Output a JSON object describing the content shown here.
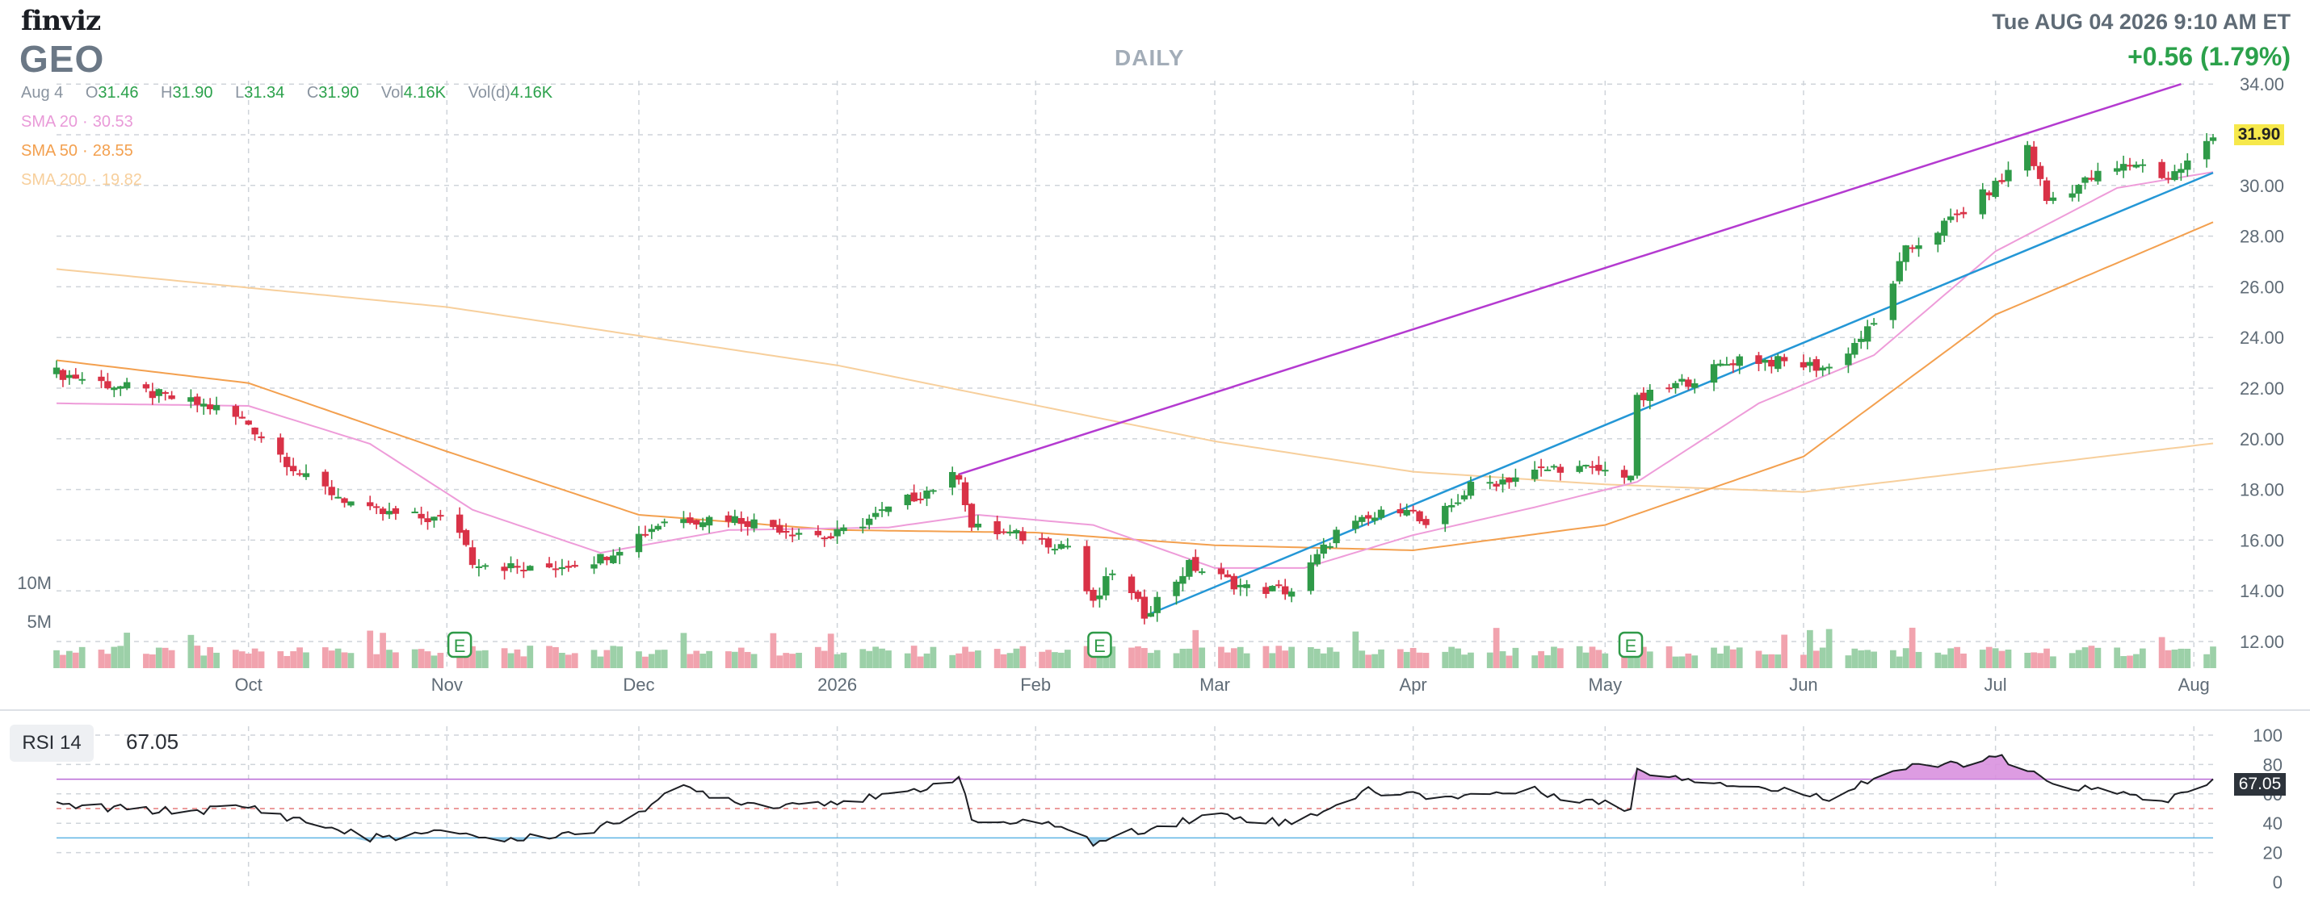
{
  "header": {
    "logo": "finviz",
    "ticker": "GEO",
    "timeframe": "DAILY",
    "datetime": "Tue AUG 04 2026 9:10 AM ET",
    "change": "+0.56 (1.79%)"
  },
  "ohlc": {
    "date": "Aug 4",
    "open_label": "O",
    "open": "31.46",
    "high_label": "H",
    "high": "31.90",
    "low_label": "L",
    "low": "31.34",
    "close_label": "C",
    "close": "31.90",
    "vol_label": "Vol",
    "vol": "4.16K",
    "vold_label": "Vol(d)",
    "vold": "4.16K"
  },
  "sma": [
    {
      "label": "SMA 20",
      "value": "30.53",
      "color": "#e99ad8"
    },
    {
      "label": "SMA 50",
      "value": "28.55",
      "color": "#f3a04f"
    },
    {
      "label": "SMA 200",
      "value": "19.82",
      "color": "#f7cf9c"
    }
  ],
  "last_price_tag": "31.90",
  "rsi": {
    "label": "RSI 14",
    "value": "67.05",
    "tag": "67.05"
  },
  "colors": {
    "up": "#2f9a48",
    "down": "#d93247",
    "grid": "#cfd4da",
    "trendline_upper": "#b43ad0",
    "trendline_lower": "#2497d6",
    "vol_up": "#9cd0a8",
    "vol_down": "#f1a3ae",
    "rsi_fill": "#d991df",
    "rsi_low_fill": "#8fc9e8"
  },
  "chart_data": {
    "type": "candlestick",
    "symbol": "GEO",
    "x_tick_labels": [
      "Oct",
      "Nov",
      "Dec",
      "2026",
      "Feb",
      "Mar",
      "Apr",
      "May",
      "Jun",
      "Jul",
      "Aug"
    ],
    "y_tick_labels": [
      "12.00",
      "14.00",
      "16.00",
      "18.00",
      "20.00",
      "22.00",
      "24.00",
      "26.00",
      "28.00",
      "30.00",
      "34.00"
    ],
    "ylim": [
      11,
      34
    ],
    "volume_labels": [
      "10M",
      "5M"
    ],
    "earnings_marker": "E",
    "anchors": [
      {
        "d": "2025-09-01",
        "p": 22.6
      },
      {
        "d": "2025-09-12",
        "p": 22.0
      },
      {
        "d": "2025-09-26",
        "p": 21.2
      },
      {
        "d": "2025-10-01",
        "p": 20.6
      },
      {
        "d": "2025-10-10",
        "p": 18.4
      },
      {
        "d": "2025-10-20",
        "p": 17.1
      },
      {
        "d": "2025-10-31",
        "p": 16.8
      },
      {
        "d": "2025-11-03",
        "p": 16.4
      },
      {
        "d": "2025-11-05",
        "p": 15.2
      },
      {
        "d": "2025-11-14",
        "p": 14.8
      },
      {
        "d": "2025-11-25",
        "p": 15.3
      },
      {
        "d": "2025-12-05",
        "p": 16.8
      },
      {
        "d": "2025-12-15",
        "p": 16.9
      },
      {
        "d": "2025-12-31",
        "p": 16.1
      },
      {
        "d": "2026-01-09",
        "p": 17.2
      },
      {
        "d": "2026-01-20",
        "p": 18.6
      },
      {
        "d": "2026-01-22",
        "p": 16.5
      },
      {
        "d": "2026-02-06",
        "p": 15.8
      },
      {
        "d": "2026-02-10",
        "p": 13.4
      },
      {
        "d": "2026-02-13",
        "p": 14.8
      },
      {
        "d": "2026-02-18",
        "p": 13.1
      },
      {
        "d": "2026-02-25",
        "p": 15.0
      },
      {
        "d": "2026-03-06",
        "p": 14.1
      },
      {
        "d": "2026-03-13",
        "p": 14.0
      },
      {
        "d": "2026-03-20",
        "p": 16.3
      },
      {
        "d": "2026-03-31",
        "p": 17.4
      },
      {
        "d": "2026-04-03",
        "p": 16.4
      },
      {
        "d": "2026-04-10",
        "p": 18.1
      },
      {
        "d": "2026-04-24",
        "p": 18.9
      },
      {
        "d": "2026-05-05",
        "p": 18.6
      },
      {
        "d": "2026-05-06",
        "p": 21.5
      },
      {
        "d": "2026-05-15",
        "p": 22.4
      },
      {
        "d": "2026-05-22",
        "p": 23.2
      },
      {
        "d": "2026-06-05",
        "p": 22.8
      },
      {
        "d": "2026-06-12",
        "p": 24.5
      },
      {
        "d": "2026-06-17",
        "p": 27.4
      },
      {
        "d": "2026-06-25",
        "p": 28.8
      },
      {
        "d": "2026-07-02",
        "p": 30.2
      },
      {
        "d": "2026-07-06",
        "p": 31.6
      },
      {
        "d": "2026-07-09",
        "p": 29.4
      },
      {
        "d": "2026-07-17",
        "p": 30.4
      },
      {
        "d": "2026-07-23",
        "p": 30.9
      },
      {
        "d": "2026-07-28",
        "p": 30.3
      },
      {
        "d": "2026-07-31",
        "p": 30.9
      },
      {
        "d": "2026-08-04",
        "p": 31.9
      }
    ],
    "sma20": [
      {
        "d": "2025-09-01",
        "p": 21.4
      },
      {
        "d": "2025-10-01",
        "p": 21.3
      },
      {
        "d": "2025-10-20",
        "p": 19.8
      },
      {
        "d": "2025-11-05",
        "p": 17.2
      },
      {
        "d": "2025-11-25",
        "p": 15.5
      },
      {
        "d": "2025-12-15",
        "p": 16.4
      },
      {
        "d": "2026-01-09",
        "p": 16.5
      },
      {
        "d": "2026-01-23",
        "p": 17.0
      },
      {
        "d": "2026-02-10",
        "p": 16.6
      },
      {
        "d": "2026-03-01",
        "p": 14.9
      },
      {
        "d": "2026-03-15",
        "p": 14.9
      },
      {
        "d": "2026-04-01",
        "p": 16.2
      },
      {
        "d": "2026-04-20",
        "p": 17.3
      },
      {
        "d": "2026-05-06",
        "p": 18.3
      },
      {
        "d": "2026-05-25",
        "p": 21.4
      },
      {
        "d": "2026-06-12",
        "p": 23.3
      },
      {
        "d": "2026-07-01",
        "p": 27.4
      },
      {
        "d": "2026-07-20",
        "p": 29.9
      },
      {
        "d": "2026-08-04",
        "p": 30.53
      }
    ],
    "sma50": [
      {
        "d": "2025-09-01",
        "p": 23.1
      },
      {
        "d": "2025-10-01",
        "p": 22.2
      },
      {
        "d": "2025-11-01",
        "p": 19.5
      },
      {
        "d": "2025-12-01",
        "p": 17.0
      },
      {
        "d": "2026-01-01",
        "p": 16.4
      },
      {
        "d": "2026-02-01",
        "p": 16.3
      },
      {
        "d": "2026-03-01",
        "p": 15.8
      },
      {
        "d": "2026-04-01",
        "p": 15.6
      },
      {
        "d": "2026-05-01",
        "p": 16.6
      },
      {
        "d": "2026-06-01",
        "p": 19.3
      },
      {
        "d": "2026-07-01",
        "p": 24.9
      },
      {
        "d": "2026-08-04",
        "p": 28.55
      }
    ],
    "sma200": [
      {
        "d": "2025-09-01",
        "p": 26.7
      },
      {
        "d": "2025-11-01",
        "p": 25.2
      },
      {
        "d": "2026-01-01",
        "p": 22.9
      },
      {
        "d": "2026-03-01",
        "p": 19.9
      },
      {
        "d": "2026-04-01",
        "p": 18.7
      },
      {
        "d": "2026-05-01",
        "p": 18.2
      },
      {
        "d": "2026-06-01",
        "p": 17.9
      },
      {
        "d": "2026-07-01",
        "p": 18.8
      },
      {
        "d": "2026-08-04",
        "p": 19.82
      }
    ],
    "trendlines": [
      {
        "name": "upper",
        "from": {
          "d": "2026-01-20",
          "p": 18.6
        },
        "to": {
          "d": "2026-07-30",
          "p": 34.0
        }
      },
      {
        "name": "lower",
        "from": {
          "d": "2026-02-18",
          "p": 13.0
        },
        "to": {
          "d": "2026-08-04",
          "p": 30.5
        }
      }
    ],
    "earnings_dates": [
      "2025-11-03",
      "2026-02-11",
      "2026-05-05"
    ],
    "rsi_ticks": [
      "100",
      "80",
      "60",
      "40",
      "20",
      "0"
    ],
    "rsi_levels": {
      "overbought": 70,
      "oversold": 30
    },
    "rsi_anchors": [
      {
        "d": "2025-09-01",
        "v": 52
      },
      {
        "d": "2025-09-20",
        "v": 48
      },
      {
        "d": "2025-10-01",
        "v": 51
      },
      {
        "d": "2025-10-20",
        "v": 30
      },
      {
        "d": "2025-11-03",
        "v": 34
      },
      {
        "d": "2025-11-10",
        "v": 28
      },
      {
        "d": "2025-11-25",
        "v": 36
      },
      {
        "d": "2025-12-08",
        "v": 64
      },
      {
        "d": "2025-12-20",
        "v": 52
      },
      {
        "d": "2026-01-10",
        "v": 58
      },
      {
        "d": "2026-01-20",
        "v": 72
      },
      {
        "d": "2026-01-22",
        "v": 42
      },
      {
        "d": "2026-02-06",
        "v": 38
      },
      {
        "d": "2026-02-10",
        "v": 26
      },
      {
        "d": "2026-02-18",
        "v": 36
      },
      {
        "d": "2026-03-01",
        "v": 46
      },
      {
        "d": "2026-03-13",
        "v": 40
      },
      {
        "d": "2026-03-25",
        "v": 62
      },
      {
        "d": "2026-04-05",
        "v": 58
      },
      {
        "d": "2026-04-20",
        "v": 62
      },
      {
        "d": "2026-05-05",
        "v": 50
      },
      {
        "d": "2026-05-06",
        "v": 76
      },
      {
        "d": "2026-05-25",
        "v": 64
      },
      {
        "d": "2026-06-05",
        "v": 58
      },
      {
        "d": "2026-06-15",
        "v": 76
      },
      {
        "d": "2026-07-02",
        "v": 84
      },
      {
        "d": "2026-07-09",
        "v": 68
      },
      {
        "d": "2026-07-20",
        "v": 60
      },
      {
        "d": "2026-07-28",
        "v": 56
      },
      {
        "d": "2026-08-04",
        "v": 67.05
      }
    ]
  }
}
